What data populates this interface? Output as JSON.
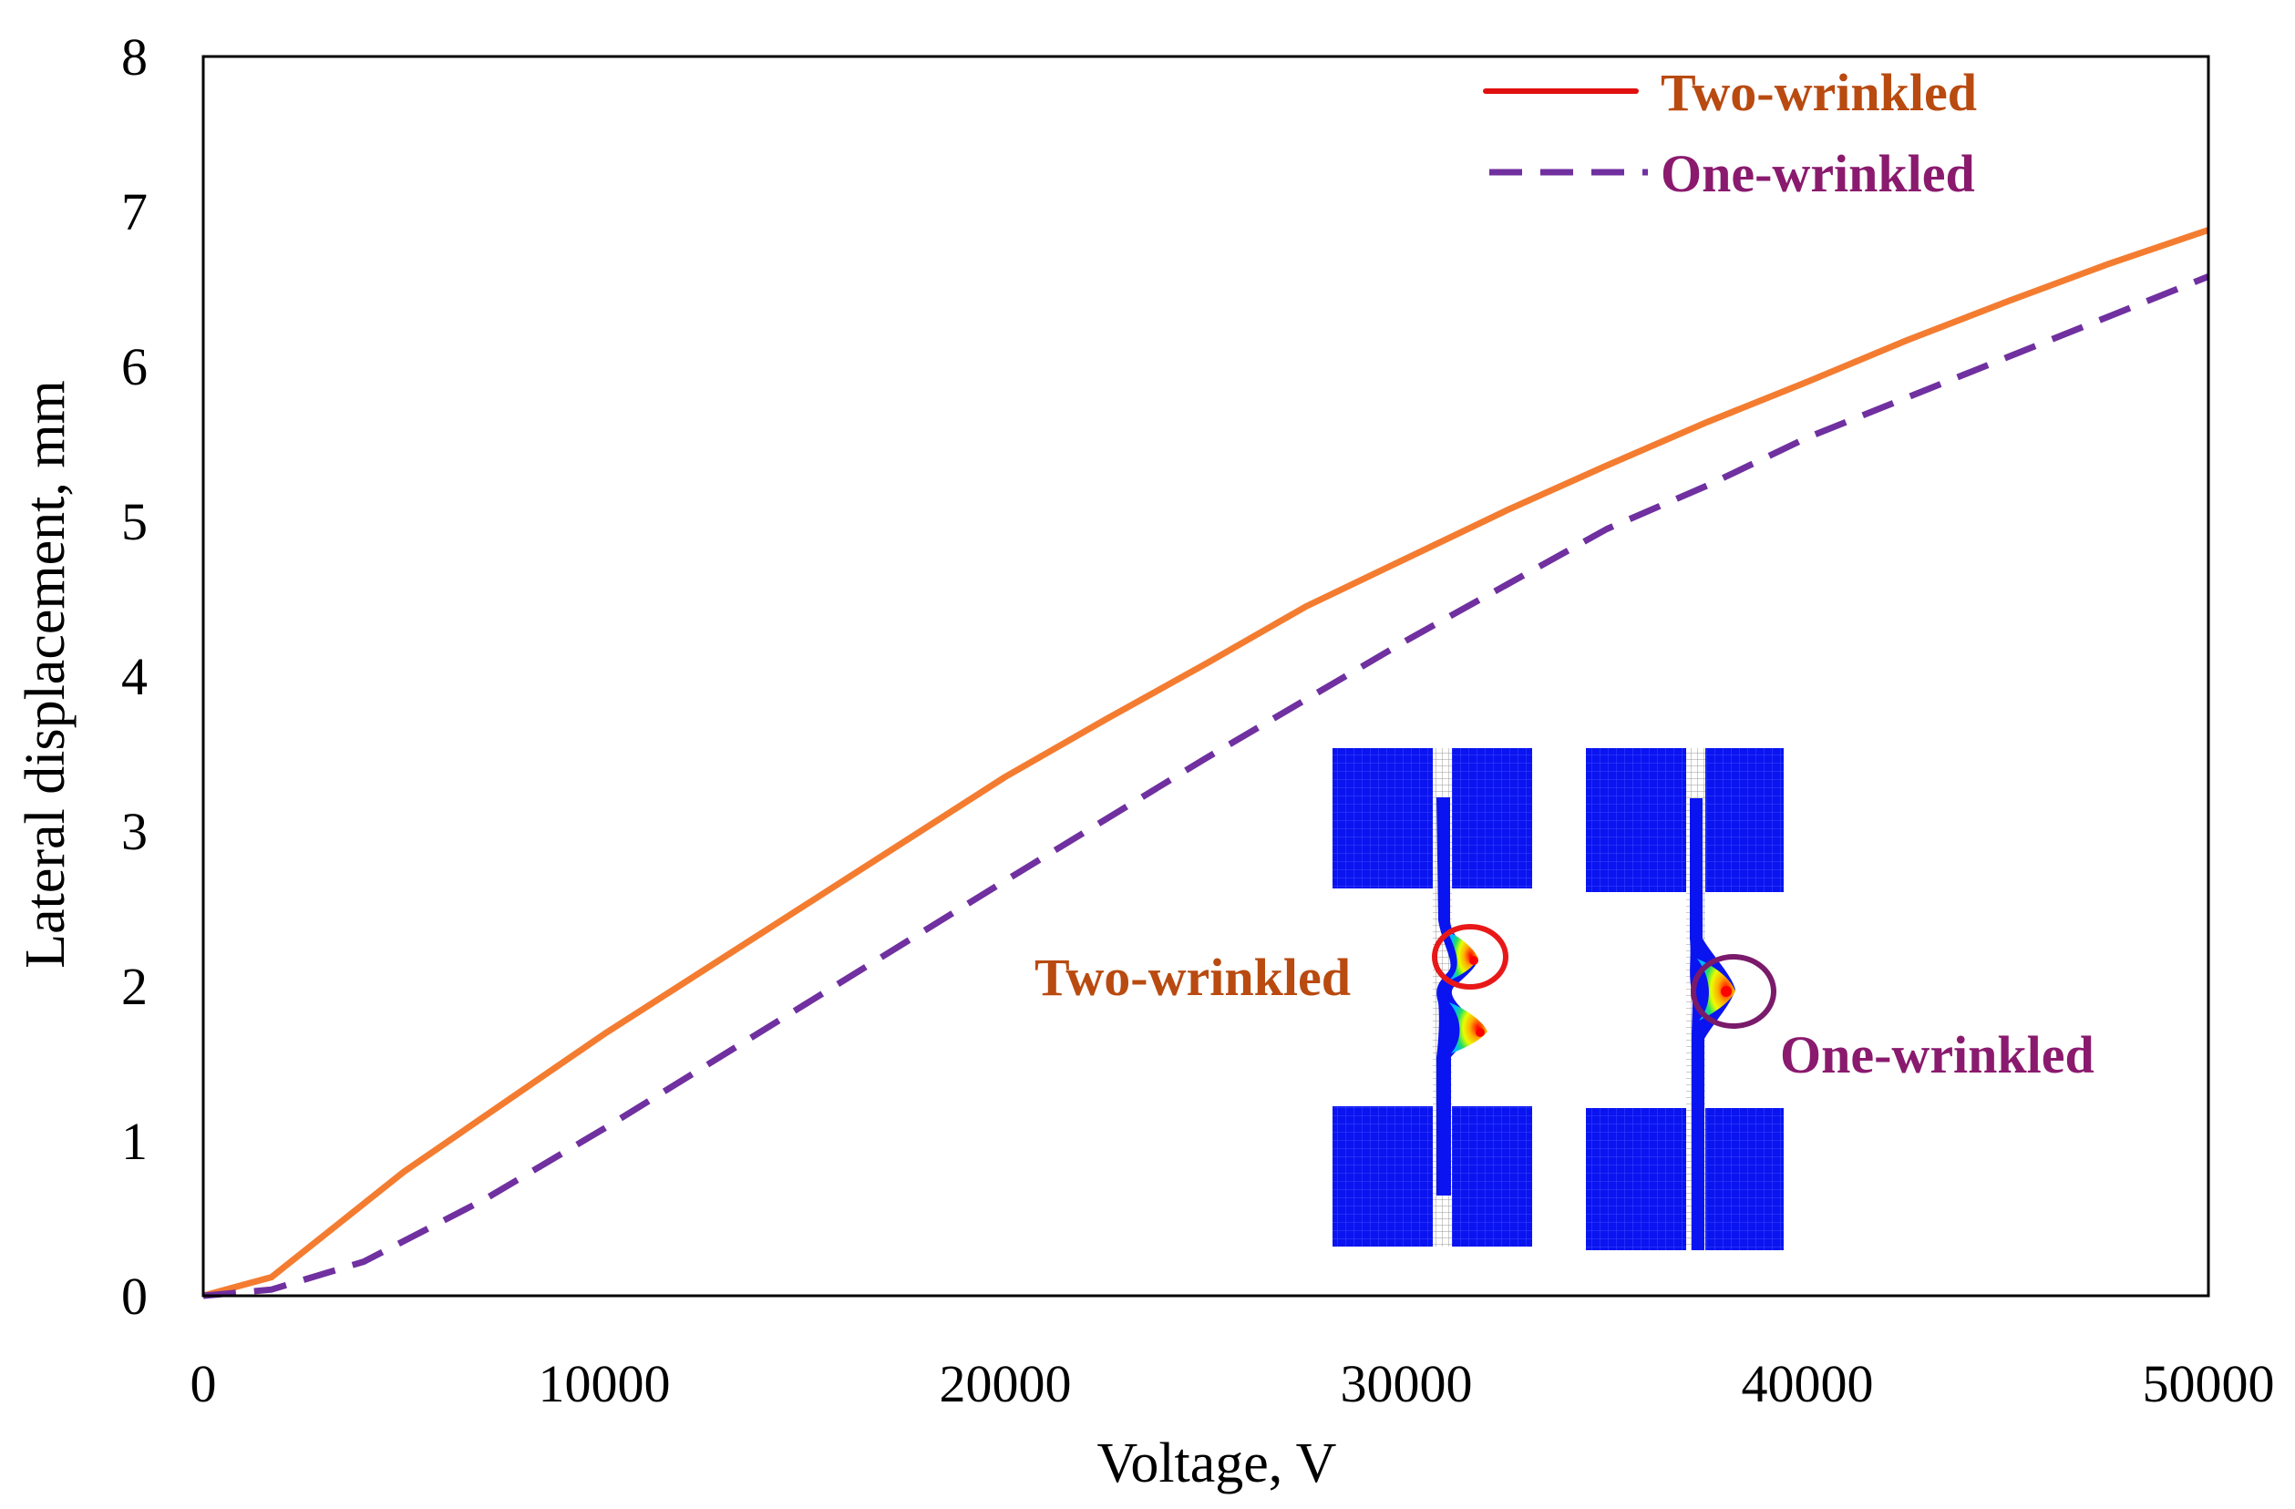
{
  "chart_data": {
    "type": "line",
    "title": "",
    "xlabel": "Voltage, V",
    "ylabel": "Lateral displacement, mm",
    "xlim": [
      0,
      50000
    ],
    "ylim": [
      0,
      8
    ],
    "x_ticks": [
      "0",
      "10000",
      "20000",
      "30000",
      "40000",
      "50000"
    ],
    "y_ticks": [
      "0",
      "1",
      "2",
      "3",
      "4",
      "5",
      "6",
      "7",
      "8"
    ],
    "grid": false,
    "legend_position": "top-right",
    "series": [
      {
        "name": "Two-wrinkled",
        "color": "#f47c30",
        "legend_color": "#e01010",
        "label_color": "#b94a10",
        "style": "solid",
        "x": [
          0,
          1700,
          5000,
          10000,
          15000,
          20000,
          22500,
          25000,
          27500,
          30000,
          32500,
          35000,
          37500,
          40000,
          42500,
          45000,
          47500,
          50000
        ],
        "y": [
          0,
          0.12,
          0.8,
          1.69,
          2.52,
          3.35,
          3.72,
          4.08,
          4.45,
          4.76,
          5.07,
          5.36,
          5.64,
          5.9,
          6.17,
          6.42,
          6.66,
          6.88
        ]
      },
      {
        "name": "One-wrinkled",
        "color": "#7030a0",
        "legend_color": "#7030a0",
        "label_color": "#8a1a6e",
        "style": "dashed",
        "x": [
          0,
          1700,
          4000,
          7000,
          10000,
          15000,
          20000,
          25000,
          30000,
          35000,
          37500,
          40000,
          45000,
          50000
        ],
        "y": [
          0,
          0.04,
          0.22,
          0.62,
          1.08,
          1.88,
          2.68,
          3.47,
          4.23,
          4.95,
          5.23,
          5.54,
          6.06,
          6.58
        ]
      }
    ],
    "annotations": [
      {
        "text": "Two-wrinkled",
        "series": "Two-wrinkled"
      },
      {
        "text": "One-wrinkled",
        "series": "One-wrinkled"
      }
    ]
  }
}
